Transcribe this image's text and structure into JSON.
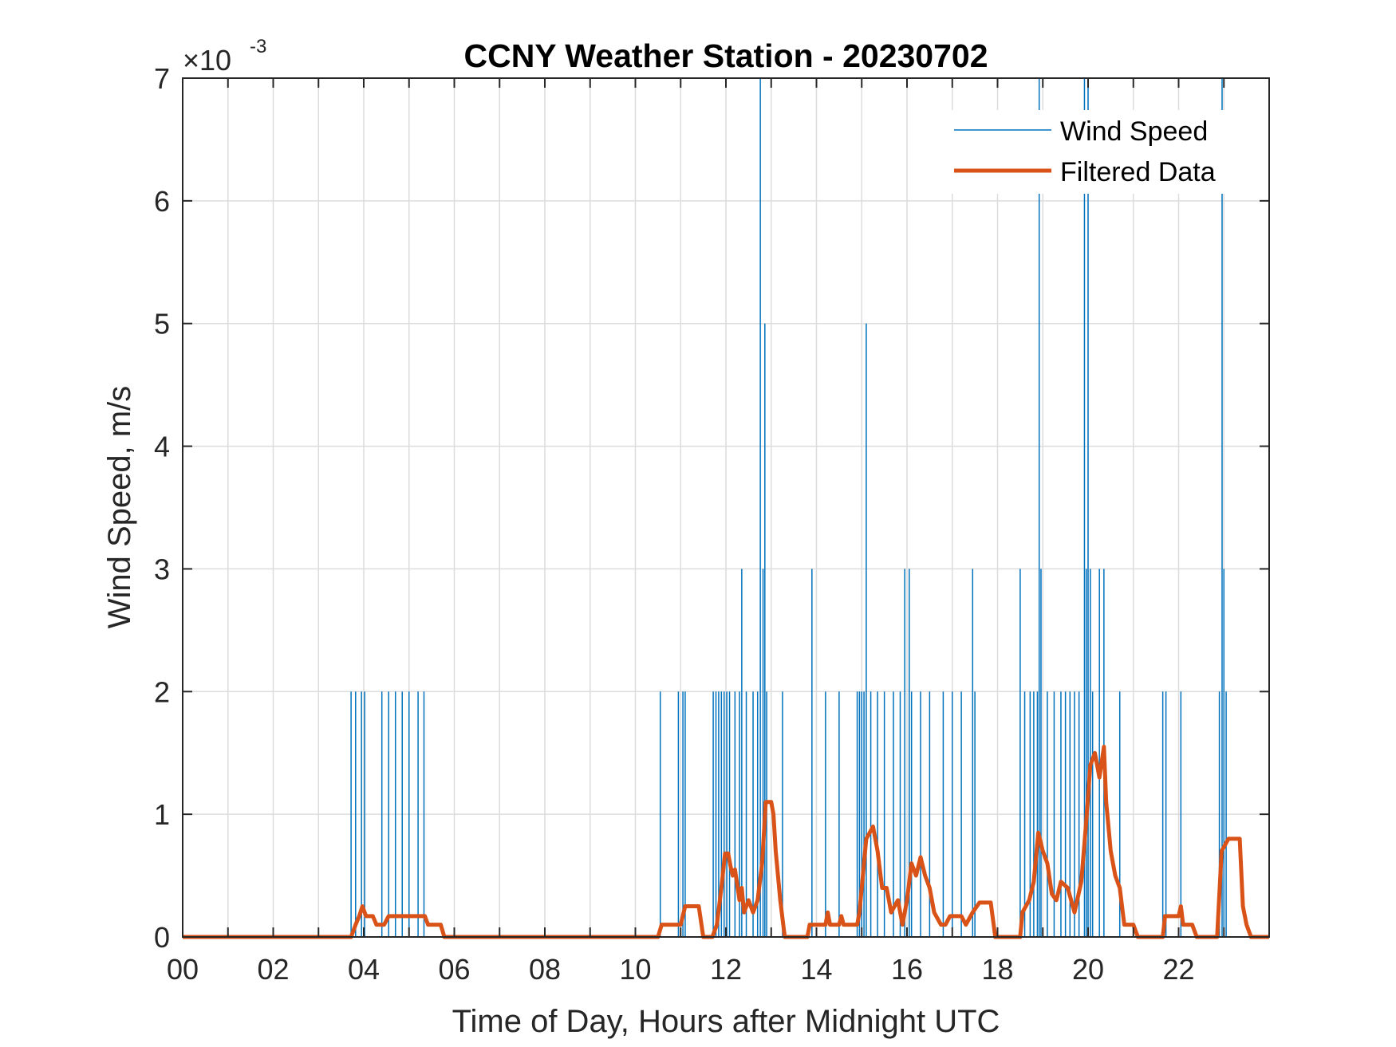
{
  "chart_data": {
    "type": "line",
    "title": "CCNY Weather Station - 20230702",
    "xlabel": "Time of Day, Hours after Midnight UTC",
    "ylabel": "Wind Speed, m/s",
    "xlim": [
      0,
      24
    ],
    "ylim": [
      0,
      0.007
    ],
    "y_exponent_base": "×10",
    "y_exponent_power": "-3",
    "x_ticks": [
      0,
      2,
      4,
      6,
      8,
      10,
      12,
      14,
      16,
      18,
      20,
      22
    ],
    "x_tick_labels": [
      "00",
      "02",
      "04",
      "06",
      "08",
      "10",
      "12",
      "14",
      "16",
      "18",
      "20",
      "22"
    ],
    "y_ticks": [
      0,
      0.001,
      0.002,
      0.003,
      0.004,
      0.005,
      0.006,
      0.007
    ],
    "y_tick_labels": [
      "0",
      "1",
      "2",
      "3",
      "4",
      "5",
      "6",
      "7"
    ],
    "grid": true,
    "legend_position": "top-right",
    "series": [
      {
        "name": "Wind Speed",
        "color": "#0072BD",
        "style": "spikes",
        "spikes": [
          [
            3.72,
            0.002
          ],
          [
            3.82,
            0.002
          ],
          [
            3.95,
            0.002
          ],
          [
            4.02,
            0.002
          ],
          [
            4.4,
            0.002
          ],
          [
            4.55,
            0.002
          ],
          [
            4.7,
            0.002
          ],
          [
            4.85,
            0.002
          ],
          [
            5.0,
            0.002
          ],
          [
            5.2,
            0.002
          ],
          [
            5.33,
            0.002
          ],
          [
            10.55,
            0.002
          ],
          [
            10.95,
            0.002
          ],
          [
            11.05,
            0.002
          ],
          [
            11.1,
            0.002
          ],
          [
            11.72,
            0.002
          ],
          [
            11.78,
            0.002
          ],
          [
            11.84,
            0.002
          ],
          [
            11.9,
            0.002
          ],
          [
            11.96,
            0.002
          ],
          [
            12.02,
            0.002
          ],
          [
            12.08,
            0.002
          ],
          [
            12.2,
            0.002
          ],
          [
            12.3,
            0.002
          ],
          [
            12.35,
            0.003
          ],
          [
            12.45,
            0.002
          ],
          [
            12.6,
            0.002
          ],
          [
            12.7,
            0.002
          ],
          [
            12.76,
            0.007
          ],
          [
            12.82,
            0.003
          ],
          [
            12.86,
            0.005
          ],
          [
            12.9,
            0.002
          ],
          [
            13.25,
            0.002
          ],
          [
            13.9,
            0.003
          ],
          [
            14.2,
            0.002
          ],
          [
            14.5,
            0.002
          ],
          [
            14.9,
            0.002
          ],
          [
            14.95,
            0.002
          ],
          [
            15.0,
            0.002
          ],
          [
            15.05,
            0.002
          ],
          [
            15.1,
            0.005
          ],
          [
            15.2,
            0.002
          ],
          [
            15.35,
            0.002
          ],
          [
            15.5,
            0.002
          ],
          [
            15.7,
            0.002
          ],
          [
            15.85,
            0.002
          ],
          [
            15.95,
            0.003
          ],
          [
            16.05,
            0.003
          ],
          [
            16.1,
            0.002
          ],
          [
            16.3,
            0.002
          ],
          [
            16.5,
            0.002
          ],
          [
            16.8,
            0.002
          ],
          [
            17.0,
            0.002
          ],
          [
            17.2,
            0.002
          ],
          [
            17.45,
            0.003
          ],
          [
            17.5,
            0.002
          ],
          [
            18.5,
            0.003
          ],
          [
            18.6,
            0.002
          ],
          [
            18.72,
            0.002
          ],
          [
            18.8,
            0.002
          ],
          [
            18.88,
            0.002
          ],
          [
            18.92,
            0.007
          ],
          [
            18.96,
            0.003
          ],
          [
            19.1,
            0.002
          ],
          [
            19.25,
            0.002
          ],
          [
            19.4,
            0.002
          ],
          [
            19.5,
            0.002
          ],
          [
            19.6,
            0.002
          ],
          [
            19.7,
            0.002
          ],
          [
            19.8,
            0.002
          ],
          [
            19.92,
            0.007
          ],
          [
            19.96,
            0.003
          ],
          [
            20.0,
            0.007
          ],
          [
            20.05,
            0.003
          ],
          [
            20.1,
            0.002
          ],
          [
            20.25,
            0.003
          ],
          [
            20.35,
            0.003
          ],
          [
            20.7,
            0.002
          ],
          [
            21.65,
            0.002
          ],
          [
            21.72,
            0.002
          ],
          [
            22.05,
            0.002
          ],
          [
            22.9,
            0.002
          ],
          [
            22.96,
            0.007
          ],
          [
            23.0,
            0.003
          ],
          [
            23.05,
            0.002
          ]
        ]
      },
      {
        "name": "Filtered Data",
        "color": "#D95319",
        "style": "line",
        "points": [
          [
            0,
            0
          ],
          [
            3.72,
            0
          ],
          [
            3.82,
            0.0001
          ],
          [
            3.9,
            0.00017
          ],
          [
            3.97,
            0.00025
          ],
          [
            4.05,
            0.00017
          ],
          [
            4.2,
            0.00017
          ],
          [
            4.28,
            0.0001
          ],
          [
            4.45,
            0.0001
          ],
          [
            4.55,
            0.00017
          ],
          [
            5.35,
            0.00017
          ],
          [
            5.42,
            0.0001
          ],
          [
            5.7,
            0.0001
          ],
          [
            5.78,
            0
          ],
          [
            10.5,
            0
          ],
          [
            10.58,
            0.0001
          ],
          [
            11.0,
            0.0001
          ],
          [
            11.1,
            0.00025
          ],
          [
            11.4,
            0.00025
          ],
          [
            11.5,
            0
          ],
          [
            11.7,
            0
          ],
          [
            11.8,
            0.0001
          ],
          [
            11.9,
            0.0004
          ],
          [
            11.98,
            0.00068
          ],
          [
            12.05,
            0.00068
          ],
          [
            12.1,
            0.00058
          ],
          [
            12.15,
            0.0005
          ],
          [
            12.2,
            0.00055
          ],
          [
            12.3,
            0.0003
          ],
          [
            12.35,
            0.0004
          ],
          [
            12.4,
            0.0002
          ],
          [
            12.5,
            0.0003
          ],
          [
            12.6,
            0.0002
          ],
          [
            12.7,
            0.0003
          ],
          [
            12.8,
            0.0006
          ],
          [
            12.88,
            0.0011
          ],
          [
            13.0,
            0.0011
          ],
          [
            13.05,
            0.001
          ],
          [
            13.1,
            0.0007
          ],
          [
            13.2,
            0.0003
          ],
          [
            13.3,
            0
          ],
          [
            13.8,
            0
          ],
          [
            13.85,
            0.0001
          ],
          [
            14.2,
            0.0001
          ],
          [
            14.25,
            0.0002
          ],
          [
            14.3,
            0.0001
          ],
          [
            14.5,
            0.0001
          ],
          [
            14.55,
            0.00017
          ],
          [
            14.6,
            0.0001
          ],
          [
            14.9,
            0.0001
          ],
          [
            14.95,
            0.0002
          ],
          [
            15.1,
            0.0008
          ],
          [
            15.25,
            0.0009
          ],
          [
            15.35,
            0.0007
          ],
          [
            15.45,
            0.0004
          ],
          [
            15.55,
            0.0004
          ],
          [
            15.65,
            0.0002
          ],
          [
            15.8,
            0.0003
          ],
          [
            15.9,
            0.0001
          ],
          [
            16.0,
            0.0003
          ],
          [
            16.1,
            0.0006
          ],
          [
            16.2,
            0.0005
          ],
          [
            16.3,
            0.00065
          ],
          [
            16.4,
            0.0005
          ],
          [
            16.5,
            0.0004
          ],
          [
            16.6,
            0.0002
          ],
          [
            16.75,
            0.0001
          ],
          [
            16.85,
            0.0001
          ],
          [
            16.95,
            0.00017
          ],
          [
            17.2,
            0.00017
          ],
          [
            17.3,
            0.0001
          ],
          [
            17.45,
            0.0002
          ],
          [
            17.6,
            0.00028
          ],
          [
            17.85,
            0.00028
          ],
          [
            17.95,
            0
          ],
          [
            18.5,
            0
          ],
          [
            18.55,
            0.0002
          ],
          [
            18.7,
            0.0003
          ],
          [
            18.8,
            0.00045
          ],
          [
            18.9,
            0.00085
          ],
          [
            19.0,
            0.0007
          ],
          [
            19.1,
            0.0006
          ],
          [
            19.2,
            0.00035
          ],
          [
            19.3,
            0.0003
          ],
          [
            19.4,
            0.00045
          ],
          [
            19.55,
            0.0004
          ],
          [
            19.7,
            0.0002
          ],
          [
            19.85,
            0.00045
          ],
          [
            19.95,
            0.0009
          ],
          [
            20.05,
            0.0014
          ],
          [
            20.15,
            0.0015
          ],
          [
            20.25,
            0.0013
          ],
          [
            20.35,
            0.00155
          ],
          [
            20.4,
            0.0011
          ],
          [
            20.5,
            0.0007
          ],
          [
            20.6,
            0.0005
          ],
          [
            20.7,
            0.0004
          ],
          [
            20.8,
            0.0001
          ],
          [
            21.0,
            0.0001
          ],
          [
            21.1,
            0
          ],
          [
            21.65,
            0
          ],
          [
            21.7,
            0.00017
          ],
          [
            22.0,
            0.00017
          ],
          [
            22.05,
            0.00025
          ],
          [
            22.1,
            0.0001
          ],
          [
            22.3,
            0.0001
          ],
          [
            22.4,
            0
          ],
          [
            22.85,
            0
          ],
          [
            22.95,
            0.0007
          ],
          [
            23.1,
            0.0008
          ],
          [
            23.35,
            0.0008
          ],
          [
            23.42,
            0.00025
          ],
          [
            23.5,
            0.0001
          ],
          [
            23.6,
            0
          ],
          [
            24.0,
            0
          ]
        ]
      }
    ]
  }
}
